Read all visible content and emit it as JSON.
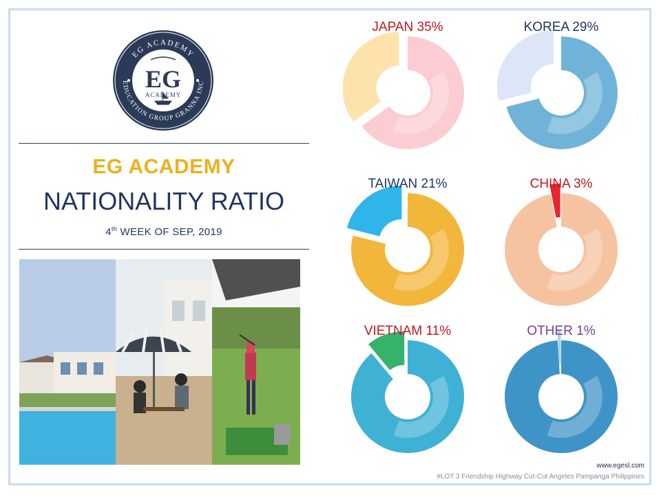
{
  "logo": {
    "ring_top": "EG ACADEMY",
    "ring_bottom": "EDUCATION GROUP GRANNA INC",
    "monogram": "EG",
    "sub": "ACADEMY",
    "colors": {
      "navy": "#2b3b57",
      "gold": "#c9a14a"
    }
  },
  "heading": {
    "brand": "EG ACADEMY",
    "title": "NATIONALITY RATIO",
    "date_prefix": "4",
    "date_sup": "th",
    "date_rest": " WEEK OF SEP, 2019"
  },
  "photos": [
    {
      "name": "pool-building-photo"
    },
    {
      "name": "patio-umbrella-photo"
    },
    {
      "name": "golf-range-photo"
    }
  ],
  "chart_data": {
    "type": "pie",
    "series": [
      {
        "name": "JAPAN",
        "value": 35,
        "label": "JAPAN 35%",
        "label_color": "#c0171f",
        "colors": [
          "#fbcdd2",
          "#fde3ab"
        ]
      },
      {
        "name": "KOREA",
        "value": 29,
        "label": "KOREA 29%",
        "label_color": "#1f3660",
        "colors": [
          "#6fb4d8",
          "#dce6f7"
        ]
      },
      {
        "name": "TAIWAN",
        "value": 21,
        "label": "TAIWAN 21%",
        "label_color": "#1f3660",
        "colors": [
          "#f2b63b",
          "#2fb5ea"
        ]
      },
      {
        "name": "CHINA",
        "value": 3,
        "label": "CHINA 3%",
        "label_color": "#c0171f",
        "colors": [
          "#f6c3a1",
          "#e8262b"
        ]
      },
      {
        "name": "VIETNAM",
        "value": 11,
        "label": "VIETNAM 11%",
        "label_color": "#c0171f",
        "colors": [
          "#3fb1d4",
          "#35b36b"
        ]
      },
      {
        "name": "OTHER",
        "value": 1,
        "label": "OTHER 1%",
        "label_color": "#7a3e93",
        "colors": [
          "#3f94c7",
          "#a6d2ea"
        ]
      }
    ]
  },
  "footer": {
    "url": "www.egesl.com",
    "address": "#LOT 3 Friendship Highway Cut-Cut Angeles Pampanga Philippines"
  }
}
